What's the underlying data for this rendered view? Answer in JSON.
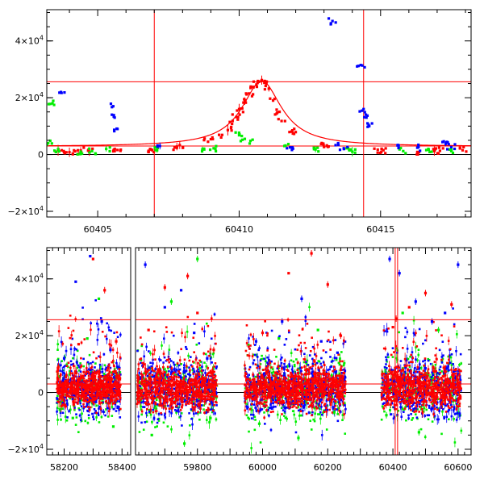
{
  "chart_data": [
    {
      "type": "scatter",
      "panel": "top",
      "title": "",
      "xlabel": "",
      "ylabel": "",
      "xlim": [
        60403.2,
        60418.2
      ],
      "ylim": [
        -22000,
        51000
      ],
      "x_ticks": [
        60405,
        60410,
        60415
      ],
      "x_tick_labels": [
        "60405",
        "60410",
        "60415"
      ],
      "y_ticks": [
        -20000,
        0,
        20000,
        40000
      ],
      "y_tick_labels": [
        {
          "mantissa": "−2×10",
          "exp": "4"
        },
        {
          "mantissa": "0",
          "exp": ""
        },
        {
          "mantissa": "2×10",
          "exp": "4"
        },
        {
          "mantissa": "4×10",
          "exp": "4"
        }
      ],
      "grid": false,
      "legend": "none",
      "reference_lines": {
        "horizontal": [
          25600,
          3000
        ],
        "vertical": [
          60407.0,
          60414.4
        ]
      },
      "model_curve": {
        "color": "#ff0000",
        "peak_x": 60410.8,
        "peak_y": 25900,
        "baseline": 2800,
        "width": 0.85
      },
      "series": [
        {
          "color": "#ff0000",
          "x": [
            60403.6,
            60403.8,
            60404.0,
            60404.2,
            60404.4,
            60404.7,
            60405.6,
            60405.7,
            60406.8,
            60406.9,
            60407.8,
            60407.9,
            60408.9,
            60409.0,
            60409.4,
            60409.6,
            60409.75,
            60409.9,
            60410.0,
            60410.2,
            60410.35,
            60410.5,
            60410.65,
            60410.8,
            60410.9,
            60411.05,
            60411.2,
            60411.35,
            60411.5,
            60411.9,
            60412.0,
            60412.9,
            60413.1,
            60414.9,
            60415.1,
            60416.3,
            60416.9,
            60417.1,
            60417.9
          ],
          "y": [
            1500,
            1200,
            800,
            1100,
            1400,
            1000,
            1200,
            1600,
            1300,
            1700,
            2800,
            3300,
            4500,
            5400,
            6900,
            8600,
            10800,
            13200,
            16000,
            18800,
            21500,
            23800,
            25200,
            26200,
            25900,
            23200,
            19000,
            14800,
            11800,
            7400,
            7900,
            3700,
            3200,
            1700,
            1500,
            900,
            1200,
            1300,
            1500
          ]
        },
        {
          "color": "#00ee00",
          "x": [
            60403.25,
            60403.4,
            60403.6,
            60404.4,
            60404.8,
            60405.3,
            60407.1,
            60408.7,
            60409.1,
            60410.0,
            60410.2,
            60410.4,
            60411.6,
            60412.7,
            60413.8,
            60414.0,
            60415.8,
            60416.7,
            60417.5
          ],
          "y": [
            4000,
            18000,
            1800,
            1000,
            1200,
            2000,
            1500,
            1800,
            2200,
            6800,
            5500,
            4800,
            3000,
            1800,
            2200,
            1000,
            1200,
            1700,
            1200
          ]
        },
        {
          "color": "#0000ff",
          "x": [
            60403.7,
            60405.55,
            60405.6,
            60405.7,
            60407.2,
            60411.8,
            60413.3,
            60413.5,
            60413.7,
            60414.3,
            60414.4,
            60414.5,
            60414.6,
            60415.6,
            60416.3,
            60417.3,
            60417.5
          ],
          "y": [
            22000,
            17000,
            13000,
            9000,
            3000,
            2500,
            47000,
            4000,
            2200,
            31500,
            16000,
            13000,
            10000,
            3200,
            2400,
            3800,
            2600
          ]
        }
      ]
    },
    {
      "type": "scatter",
      "panel": "bottom",
      "title": "",
      "xlabel": "",
      "ylabel": "",
      "broken_x_axis": true,
      "segments": [
        {
          "xlim": [
            58140,
            58430
          ],
          "x_ticks": [
            58200,
            58400
          ],
          "x_tick_labels": [
            "58200",
            "58400"
          ]
        },
        {
          "xlim": [
            59610,
            60640
          ],
          "x_ticks": [
            59800,
            60000,
            60200,
            60400,
            60600
          ],
          "x_tick_labels": [
            "59800",
            "60000",
            "60200",
            "60400",
            "60600"
          ]
        }
      ],
      "ylim": [
        -22000,
        51000
      ],
      "y_ticks": [
        -20000,
        0,
        20000,
        40000
      ],
      "y_tick_labels": [
        {
          "mantissa": "−2×10",
          "exp": "4"
        },
        {
          "mantissa": "0",
          "exp": ""
        },
        {
          "mantissa": "2×10",
          "exp": "4"
        },
        {
          "mantissa": "4×10",
          "exp": "4"
        }
      ],
      "grid": false,
      "legend": "none",
      "reference_lines": {
        "horizontal": [
          25600,
          3000
        ],
        "vertical": [
          60407.0,
          60414.4
        ]
      },
      "seasons": [
        {
          "x_range": [
            58175,
            58395
          ],
          "spread": 1.0
        },
        {
          "x_range": [
            59615,
            59860
          ],
          "spread": 1.25
        },
        {
          "x_range": [
            59945,
            60255
          ],
          "spread": 1.15
        },
        {
          "x_range": [
            60365,
            60610
          ],
          "spread": 1.2
        }
      ],
      "series": [
        {
          "color": "#0000ff",
          "x": [
            58200,
            58240,
            58290,
            58330,
            58360,
            58385,
            59640,
            59700,
            59750,
            59790,
            59830,
            59980,
            60060,
            60120,
            60180,
            60230,
            60390,
            60420,
            60470,
            60520,
            60560,
            60600
          ],
          "y": [
            12000,
            39000,
            48000,
            25000,
            15000,
            9000,
            45000,
            30000,
            36000,
            21000,
            12000,
            18000,
            25000,
            33000,
            18000,
            14000,
            47000,
            42000,
            32000,
            25000,
            28000,
            45000
          ]
        },
        {
          "color": "#ff0000",
          "x": [
            58180,
            58250,
            58300,
            58340,
            58380,
            59650,
            59700,
            59770,
            59800,
            59850,
            60000,
            60080,
            60150,
            60200,
            60240,
            60400,
            60410,
            60450,
            60500,
            60580
          ],
          "y": [
            9000,
            17000,
            47000,
            36000,
            18000,
            22000,
            37000,
            41000,
            28000,
            15000,
            21000,
            42000,
            49000,
            38000,
            20000,
            23000,
            26000,
            30000,
            35000,
            31000
          ]
        },
        {
          "color": "#00ee00",
          "x": [
            58185,
            58230,
            58280,
            58320,
            58370,
            59660,
            59720,
            59760,
            59800,
            59840,
            59990,
            60050,
            60110,
            60170,
            60220,
            60380,
            60430,
            60480,
            60540
          ],
          "y": [
            -6000,
            -9000,
            19000,
            33000,
            -12000,
            -15000,
            32000,
            -18000,
            47000,
            -9000,
            -11000,
            19000,
            -16000,
            22000,
            -7000,
            -8000,
            28000,
            -14000,
            22000
          ]
        }
      ]
    }
  ]
}
